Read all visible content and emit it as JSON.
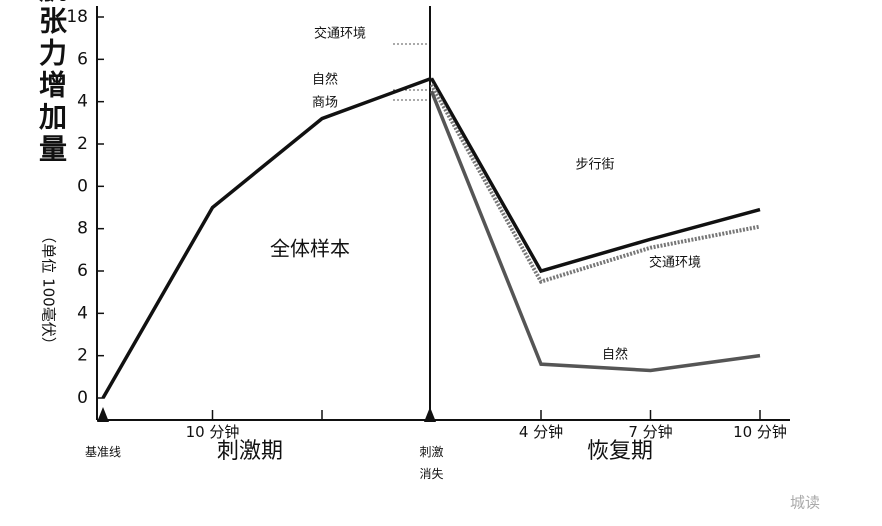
{
  "chart_data": {
    "type": "line",
    "y_axis_label": "肌张力增加量",
    "y_axis_unit": "（单位 100毫伏）",
    "categories": [
      "基准线",
      "10 分钟",
      null,
      "刺激\n消失",
      "4 分钟",
      "7 分钟",
      "10 分钟"
    ],
    "periods": [
      "刺激期",
      "恢复期"
    ],
    "ylim": [
      0,
      18
    ],
    "yticks": [
      0,
      2,
      4,
      6,
      8,
      {
        "value": 10,
        "label": "0"
      },
      {
        "value": 12,
        "label": "2"
      },
      {
        "value": 14,
        "label": "4"
      },
      {
        "value": 16,
        "label": "6"
      },
      18
    ],
    "series": [
      {
        "name": "全体样本",
        "color": "#111111",
        "values": [
          0,
          9.0,
          13.2,
          15.1,
          null,
          null,
          null
        ]
      },
      {
        "name": "步行街",
        "color": "#111111",
        "values": [
          null,
          null,
          null,
          15.1,
          6.0,
          7.5,
          8.9
        ]
      },
      {
        "name": "交通环境",
        "color": "#777777",
        "dashed": true,
        "values": [
          null,
          null,
          null,
          14.8,
          5.5,
          7.1,
          8.1
        ]
      },
      {
        "name": "自然",
        "color": "#555555",
        "values": [
          null,
          null,
          null,
          14.5,
          1.6,
          1.3,
          2.0
        ]
      }
    ],
    "annotations": [
      "交通环境",
      "自然",
      "商场"
    ],
    "watermark": "城读"
  }
}
